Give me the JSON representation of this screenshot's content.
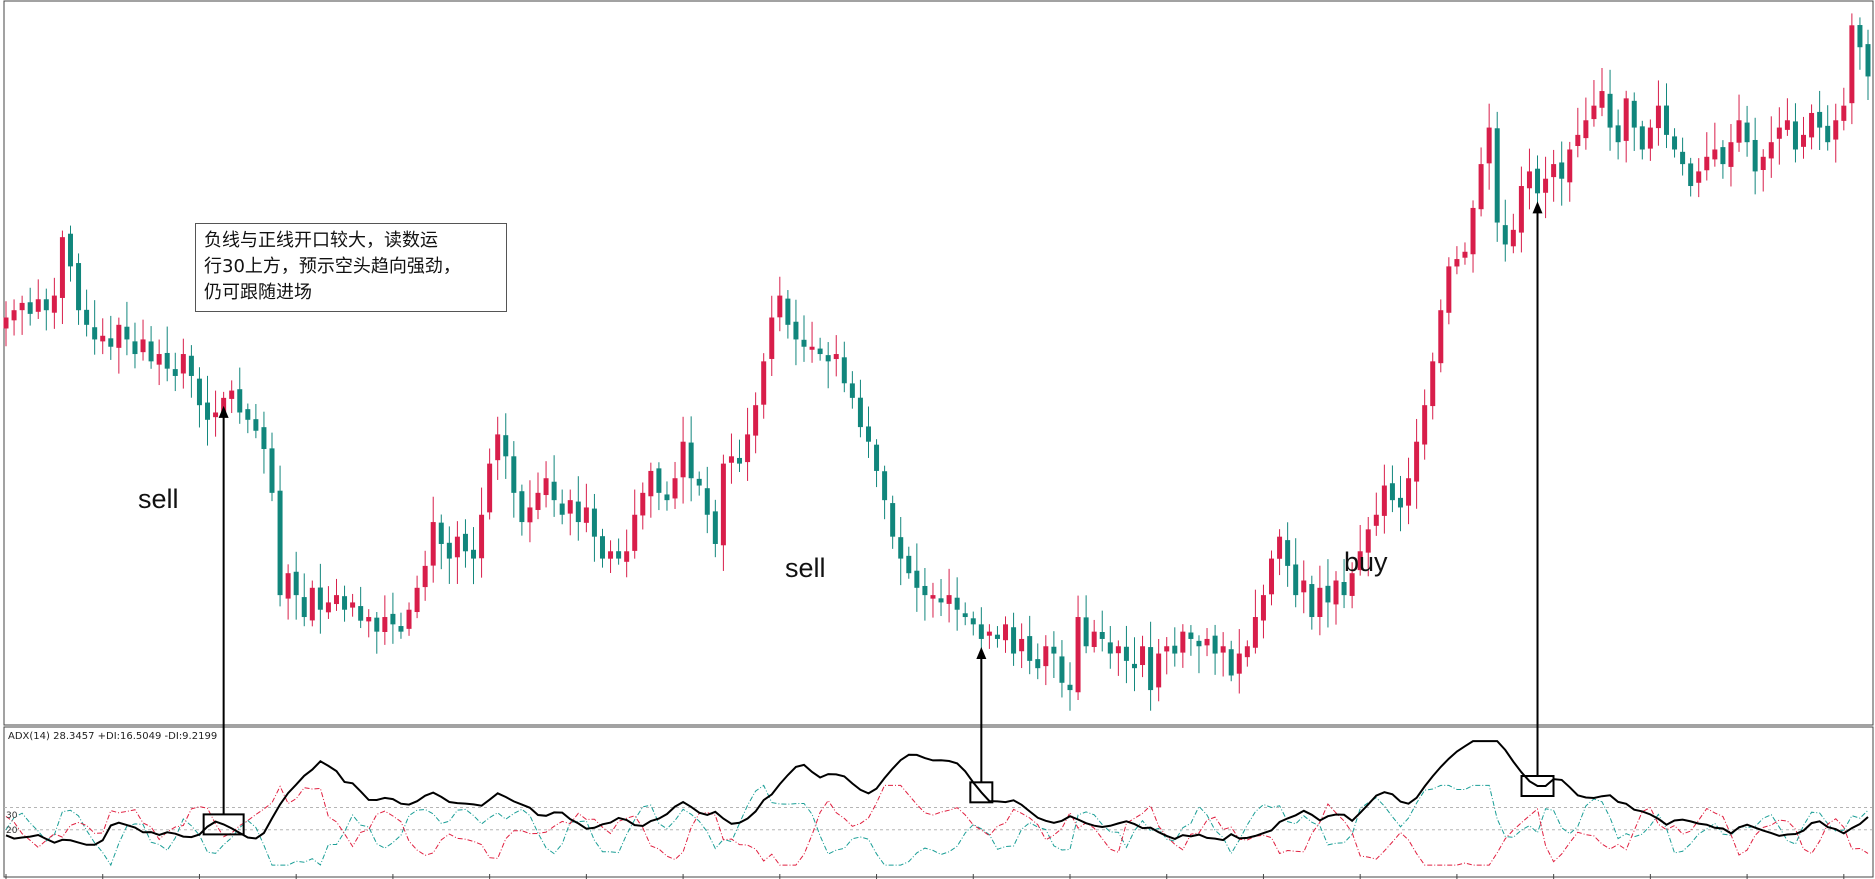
{
  "annotation": {
    "lines": [
      "负线与正线开口较大，读数运",
      "行30上方，预示空头趋向强劲，",
      "仍可跟随进场"
    ]
  },
  "signals": [
    {
      "label": "sell",
      "bar": 27
    },
    {
      "label": "sell",
      "bar": 121
    },
    {
      "label": "buy",
      "bar": 190
    }
  ],
  "indicator": {
    "caption": "ADX(14) 28.3457 +DI:16.5049 -DI:9.2199",
    "levels": [
      30,
      20
    ]
  },
  "colors": {
    "bull": "#d81e4a",
    "bear": "#11867c",
    "adx": "#000000",
    "plus_di": "#1a9e96",
    "minus_di": "#e02040",
    "level_line": "#b5b5b5"
  },
  "chart_data": {
    "type": "candlestick",
    "ylim": [
      1.0,
      20.0
    ],
    "closes": [
      11.8,
      12.0,
      12.2,
      11.9,
      12.3,
      12.0,
      12.4,
      14.0,
      13.2,
      12.0,
      11.6,
      11.2,
      11.3,
      11.0,
      11.6,
      11.2,
      10.8,
      11.2,
      10.6,
      10.8,
      10.4,
      10.2,
      10.8,
      10.2,
      9.4,
      9.0,
      9.2,
      9.6,
      9.8,
      9.2,
      9.0,
      8.7,
      8.2,
      7.0,
      4.2,
      4.8,
      4.2,
      3.6,
      4.4,
      3.8,
      4.0,
      4.2,
      3.8,
      4.0,
      3.5,
      3.6,
      3.2,
      3.6,
      3.4,
      3.2,
      3.8,
      4.4,
      5.0,
      6.2,
      5.6,
      5.2,
      5.8,
      5.4,
      5.2,
      6.4,
      7.8,
      8.6,
      8.0,
      7.0,
      6.2,
      6.6,
      7.0,
      7.4,
      6.8,
      6.4,
      6.8,
      6.2,
      6.6,
      5.8,
      5.2,
      5.4,
      5.2,
      5.4,
      6.4,
      7.0,
      7.6,
      7.0,
      6.8,
      7.4,
      8.4,
      7.4,
      7.2,
      6.4,
      5.6,
      7.8,
      8.0,
      7.8,
      8.6,
      9.4,
      10.6,
      11.8,
      12.4,
      11.6,
      11.2,
      11.0,
      11.0,
      10.8,
      10.6,
      10.8,
      10.0,
      9.6,
      8.8,
      8.4,
      7.6,
      6.8,
      5.8,
      5.2,
      4.8,
      4.4,
      4.2,
      4.2,
      4.0,
      4.2,
      3.8,
      3.6,
      3.4,
      3.0,
      3.2,
      3.0,
      3.4,
      2.6,
      3.0,
      2.4,
      2.2,
      2.8,
      2.6,
      1.8,
      1.6,
      3.6,
      2.8,
      3.2,
      3.0,
      2.6,
      2.8,
      2.4,
      2.2,
      2.8,
      1.6,
      2.6,
      2.8,
      2.6,
      3.2,
      3.0,
      2.8,
      3.0,
      2.6,
      2.8,
      2.0,
      2.6,
      2.8,
      3.6,
      4.2,
      5.2,
      5.8,
      5.0,
      4.2,
      4.6,
      3.6,
      4.4,
      4.0,
      4.6,
      4.2,
      4.8,
      5.4,
      6.0,
      6.4,
      7.2,
      6.8,
      6.6,
      7.4,
      8.4,
      9.4,
      10.6,
      12.0,
      13.2,
      13.4,
      13.6,
      14.8,
      16.0,
      17.0,
      14.4,
      13.8,
      14.2,
      15.4,
      15.8,
      15.2,
      15.6,
      16.0,
      15.6,
      16.4,
      16.8,
      17.2,
      17.6,
      18.0,
      17.0,
      16.6,
      17.8,
      17.0,
      16.4,
      17.0,
      17.6,
      16.8,
      16.4,
      16.0,
      15.4,
      15.8,
      16.2,
      16.4,
      16.0,
      16.6,
      17.2,
      16.6,
      15.8,
      16.2,
      16.6,
      17.0,
      17.2,
      16.4,
      16.8,
      17.4,
      17.0,
      16.6,
      17.2,
      17.6,
      19.8,
      19.2,
      18.4
    ]
  }
}
